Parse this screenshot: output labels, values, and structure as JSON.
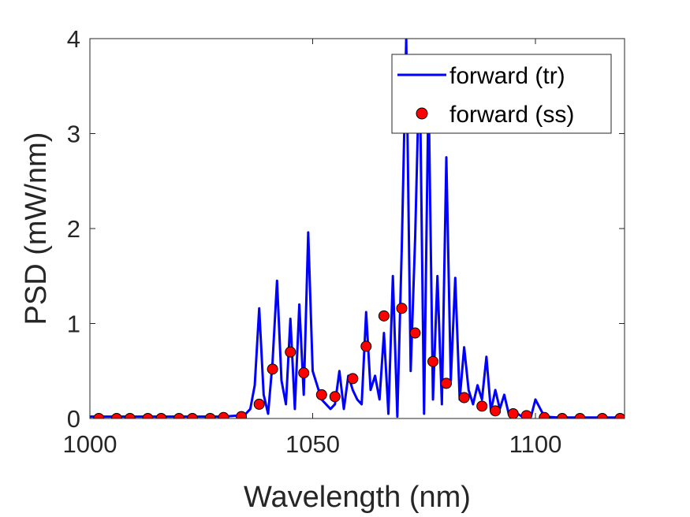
{
  "chart_data": {
    "type": "line",
    "xlabel": "Wavelength (nm)",
    "ylabel": "PSD (mW/nm)",
    "xlim": [
      1000,
      1120
    ],
    "ylim": [
      0,
      4
    ],
    "xticks": [
      1000,
      1050,
      1100
    ],
    "yticks": [
      0,
      1,
      2,
      3,
      4
    ],
    "grid": false,
    "legend_position": "top-right",
    "series": [
      {
        "name": "forward (tr)",
        "style": "line",
        "color": "#0000ff",
        "x": [
          1000,
          1030,
          1033,
          1035,
          1036,
          1037,
          1038,
          1039,
          1040,
          1041,
          1042,
          1043,
          1044,
          1045,
          1046,
          1047,
          1048,
          1049,
          1050,
          1051,
          1052,
          1053,
          1054,
          1055,
          1056,
          1057,
          1058,
          1059,
          1060,
          1061,
          1062,
          1063,
          1064,
          1065,
          1066,
          1067,
          1068,
          1069,
          1070,
          1071,
          1072,
          1073,
          1074,
          1075,
          1076,
          1077,
          1078,
          1079,
          1080,
          1081,
          1082,
          1083,
          1084,
          1085,
          1086,
          1087,
          1088,
          1089,
          1090,
          1091,
          1092,
          1093,
          1094,
          1095,
          1096,
          1097,
          1098,
          1099,
          1100,
          1102,
          1105,
          1110,
          1120
        ],
        "y": [
          0.02,
          0.02,
          0.03,
          0.05,
          0.1,
          0.35,
          1.16,
          0.25,
          0.05,
          0.6,
          1.45,
          0.4,
          0.15,
          1.05,
          0.1,
          1.2,
          0.25,
          1.96,
          0.5,
          0.35,
          0.2,
          0.15,
          0.1,
          0.15,
          0.5,
          0.1,
          0.45,
          0.3,
          0.2,
          0.15,
          1.12,
          0.3,
          0.45,
          0.2,
          0.9,
          0.05,
          1.5,
          0.02,
          1.8,
          4.0,
          0.5,
          1.9,
          3.8,
          0.05,
          3.5,
          0.2,
          1.5,
          0.15,
          2.75,
          0.4,
          1.48,
          0.2,
          0.75,
          0.3,
          0.15,
          0.35,
          0.2,
          0.65,
          0.08,
          0.3,
          0.1,
          0.25,
          0.05,
          0.02,
          0.05,
          0.02,
          0.02,
          0.02,
          0.2,
          0.02,
          0.01,
          0.01,
          0.01
        ]
      },
      {
        "name": "forward (ss)",
        "style": "markers",
        "color": "#ff0000",
        "x": [
          1002,
          1006,
          1009,
          1013,
          1016,
          1020,
          1023,
          1027,
          1030,
          1034,
          1038,
          1041,
          1045,
          1048,
          1052,
          1055,
          1059,
          1062,
          1066,
          1070,
          1073,
          1077,
          1080,
          1084,
          1088,
          1091,
          1095,
          1098,
          1102,
          1106,
          1110,
          1115,
          1119
        ],
        "y": [
          0.0,
          0.0,
          0.0,
          0.0,
          0.0,
          0.0,
          0.0,
          0.0,
          0.01,
          0.02,
          0.15,
          0.52,
          0.7,
          0.48,
          0.25,
          0.23,
          0.42,
          0.76,
          1.08,
          1.16,
          0.9,
          0.6,
          0.37,
          0.22,
          0.13,
          0.08,
          0.05,
          0.03,
          0.01,
          0.0,
          0.0,
          0.0,
          0.0
        ]
      }
    ]
  }
}
